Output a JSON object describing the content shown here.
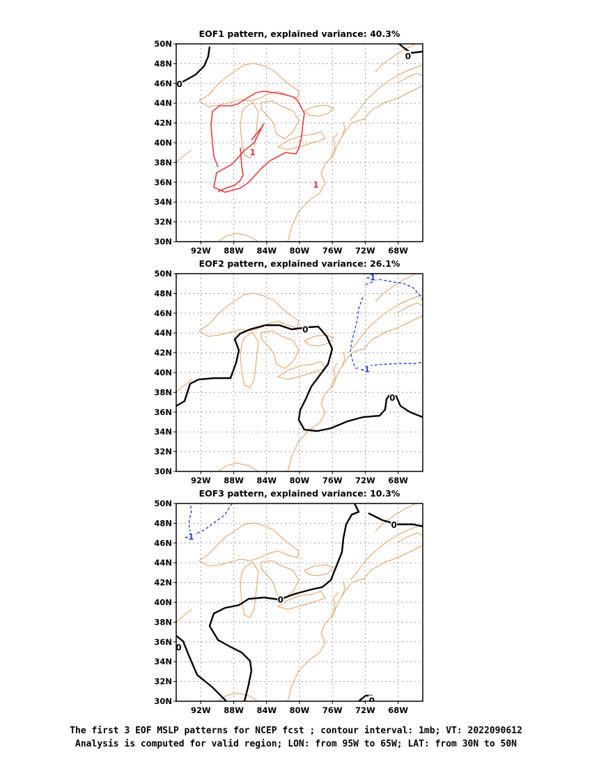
{
  "domain": "Map",
  "figure": {
    "lon_range": [
      -95,
      -65
    ],
    "lat_range": [
      30,
      50
    ],
    "lat_tick_labels": [
      "30N",
      "32N",
      "34N",
      "36N",
      "38N",
      "40N",
      "42N",
      "44N",
      "46N",
      "48N",
      "50N"
    ],
    "lon_tick_labels": [
      "92W",
      "88W",
      "84W",
      "80W",
      "76W",
      "72W",
      "68W"
    ],
    "colors": {
      "coastline": "#e39a5a",
      "positive_contour": "#e8383a",
      "negative_contour": "#2a3fe0",
      "zero_contour": "#000000"
    },
    "panels": [
      {
        "title": "EOF1 pattern, explained variance: 40.3%",
        "contour_labels": [
          {
            "text": "0",
            "color": "#000000",
            "lon": -94.6,
            "lat": 46.0
          },
          {
            "text": "0",
            "color": "#000000",
            "lon": -66.8,
            "lat": 48.8
          },
          {
            "text": "1",
            "color": "#e8383a",
            "lon": -85.7,
            "lat": 39.1
          },
          {
            "text": "1",
            "color": "#e8383a",
            "lon": -78.0,
            "lat": 35.8
          }
        ]
      },
      {
        "title": "EOF2 pattern, explained variance: 26.1%",
        "contour_labels": [
          {
            "text": "0",
            "color": "#000000",
            "lon": -79.3,
            "lat": 44.4
          },
          {
            "text": "0",
            "color": "#000000",
            "lon": -68.7,
            "lat": 37.5
          },
          {
            "text": "-1",
            "color": "#2a3fe0",
            "lon": -72.0,
            "lat": 40.4
          },
          {
            "text": "-1",
            "color": "#2a3fe0",
            "lon": -71.3,
            "lat": 49.7
          }
        ]
      },
      {
        "title": "EOF3 pattern, explained variance: 10.3%",
        "contour_labels": [
          {
            "text": "0",
            "color": "#000000",
            "lon": -68.5,
            "lat": 47.9
          },
          {
            "text": "0",
            "color": "#000000",
            "lon": -82.3,
            "lat": 40.3
          },
          {
            "text": "0",
            "color": "#000000",
            "lon": -94.7,
            "lat": 35.5
          },
          {
            "text": "0",
            "color": "#000000",
            "lon": -71.2,
            "lat": 30.1
          },
          {
            "text": "-1",
            "color": "#2a3fe0",
            "lon": -93.4,
            "lat": 46.7
          }
        ]
      }
    ]
  },
  "caption": {
    "line1": "The first 3 EOF MSLP patterns for NCEP fcst ; contour interval: 1mb; VT: 2022090612",
    "line2": "Analysis is computed for valid region; LON: from 95W to 65W; LAT: from 30N to 50N"
  }
}
